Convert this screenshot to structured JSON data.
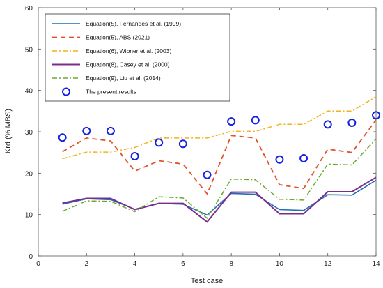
{
  "chart_data": {
    "type": "line",
    "xlabel": "Test case",
    "ylabel": "Krd (% MBS)",
    "xlim": [
      0,
      14
    ],
    "ylim": [
      0,
      60
    ],
    "xticks": [
      0,
      2,
      4,
      6,
      8,
      10,
      12,
      14
    ],
    "yticks": [
      0,
      10,
      20,
      30,
      40,
      50,
      60
    ],
    "grid": false,
    "legend_position": "top-left",
    "x": [
      1,
      2,
      3,
      4,
      5,
      6,
      7,
      8,
      9,
      10,
      11,
      12,
      13,
      14
    ],
    "series": [
      {
        "name": "Equation(5), Fernandes et al. (1999)",
        "style": "solid",
        "color": "#1f6fb5",
        "values": [
          12.5,
          13.8,
          13.6,
          11.3,
          12.7,
          12.5,
          9.9,
          15.1,
          14.9,
          11.2,
          11.0,
          14.8,
          14.7,
          18.3
        ]
      },
      {
        "name": "Equation(5), ABS (2021)",
        "style": "dashed",
        "color": "#e2522a",
        "values": [
          25.2,
          28.5,
          27.8,
          20.5,
          23.0,
          22.2,
          15.0,
          29.1,
          28.5,
          17.2,
          16.3,
          25.8,
          25.0,
          32.9
        ]
      },
      {
        "name": "Equation(6), Wibner et al. (2003)",
        "style": "dashdot",
        "color": "#f2b21b",
        "values": [
          23.5,
          25.1,
          25.1,
          26.2,
          28.5,
          28.5,
          28.5,
          30.1,
          30.1,
          31.8,
          31.8,
          35.0,
          35.0,
          38.5
        ]
      },
      {
        "name": "Equation(8), Casey et al. (2000)",
        "style": "solid-thick",
        "color": "#7b2d8e",
        "values": [
          12.8,
          13.9,
          13.9,
          11.2,
          12.7,
          12.7,
          8.2,
          15.4,
          15.4,
          10.2,
          10.2,
          15.5,
          15.5,
          19.0
        ]
      },
      {
        "name": "Equation(9), Liu et al. (2014)",
        "style": "dashdot",
        "color": "#6aa832",
        "values": [
          10.8,
          13.3,
          13.2,
          10.7,
          14.3,
          14.0,
          9.1,
          18.6,
          18.4,
          13.7,
          13.5,
          22.2,
          22.0,
          28.3
        ]
      },
      {
        "name": "The present results",
        "style": "markers",
        "color": "#1421e0",
        "values": [
          28.6,
          30.2,
          30.2,
          24.1,
          27.4,
          27.1,
          19.6,
          32.5,
          32.8,
          23.3,
          23.6,
          31.8,
          32.2,
          34.0
        ]
      }
    ]
  }
}
